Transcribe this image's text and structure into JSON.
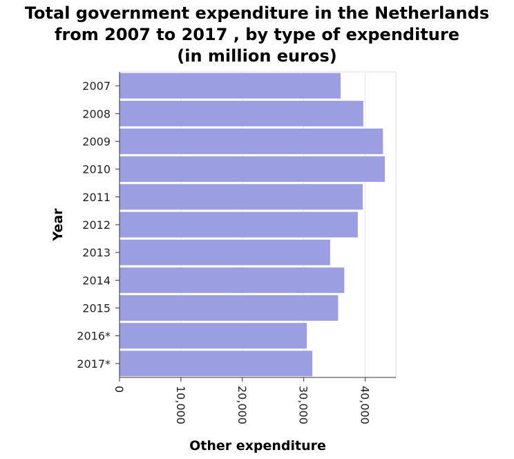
{
  "chart_data": {
    "type": "bar",
    "orientation": "horizontal",
    "title": "Total government expenditure in the Netherlands\nfrom 2007 to 2017 , by type of expenditure\n(in million euros)",
    "xlabel": "Other expenditure",
    "ylabel": "Year",
    "categories": [
      "2007",
      "2008",
      "2009",
      "2010",
      "2011",
      "2012",
      "2013",
      "2014",
      "2015",
      "2016*",
      "2017*"
    ],
    "values": [
      36000,
      39700,
      42900,
      43200,
      39600,
      38800,
      34300,
      36600,
      35600,
      30500,
      31400
    ],
    "x_ticks": [
      0,
      10000,
      20000,
      30000,
      40000
    ],
    "x_tick_labels": [
      "0",
      "10,000",
      "20,000",
      "30,000",
      "40,000"
    ],
    "xlim": [
      0,
      45000
    ],
    "grid": true,
    "colors": {
      "bar": "#9b9ee0",
      "grid": "#e8e8e8",
      "axis": "#333333",
      "frame": "#dddddd"
    }
  }
}
